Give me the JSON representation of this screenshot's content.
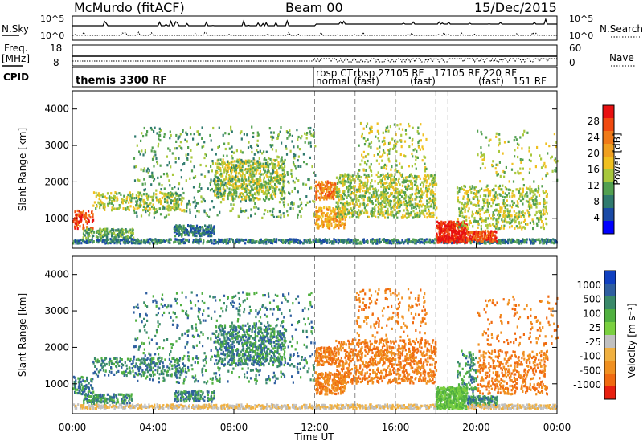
{
  "header": {
    "title": "McMurdo (fitACF)",
    "beam": "Beam 00",
    "date": "15/Dec/2015"
  },
  "panels": {
    "nsky_label": "N.Sky",
    "nsearch_label": "N.Search",
    "nsky_ticks": [
      "10^5",
      "10^0"
    ],
    "freq_label": "Freq.",
    "freq_unit": "[MHz]",
    "freq_ticks": [
      "18",
      "8"
    ],
    "nave_label": "Nave",
    "nave_ticks": [
      "60",
      "0"
    ],
    "cpid_label": "CPID",
    "cpid_entries": [
      "themis 3300 RF",
      "rbsp CT",
      "normal",
      "rbsp 27105 RF",
      "(fast)",
      "17105 RF 220 RF",
      "(fast)",
      "(fast)",
      "151 RF"
    ]
  },
  "chart_data": [
    {
      "type": "heatmap",
      "name": "power",
      "ylabel": "Slant Range [km]",
      "yticks": [
        1000,
        2000,
        3000,
        4000
      ],
      "ylim": [
        180,
        4500
      ],
      "xlim": [
        0,
        24
      ],
      "xticks": [
        "00:00",
        "04:00",
        "08:00",
        "12:00",
        "16:00",
        "20:00",
        "00:00"
      ],
      "xlabel": "Time UT",
      "colorbar": {
        "label": "Power [dB]",
        "ticks": [
          "4",
          "8",
          "12",
          "16",
          "20",
          "24",
          "28"
        ],
        "colors": [
          "#0000ff",
          "#1a4aa6",
          "#2f7a6e",
          "#52a050",
          "#a8c83c",
          "#f0c020",
          "#f0a020",
          "#f07a18",
          "#f04a10",
          "#e81010"
        ]
      },
      "mode_changes_ut": [
        12.0,
        14.0,
        16.0,
        18.0,
        18.6
      ]
    },
    {
      "type": "heatmap",
      "name": "velocity",
      "ylabel": "Slant Range [km]",
      "yticks": [
        1000,
        2000,
        3000,
        4000
      ],
      "ylim": [
        180,
        4500
      ],
      "xlim": [
        0,
        24
      ],
      "xticks": [
        "00:00",
        "04:00",
        "08:00",
        "12:00",
        "16:00",
        "20:00",
        "00:00"
      ],
      "xlabel": "Time UT",
      "colorbar": {
        "label": "Velocity [m s⁻¹]",
        "ticks": [
          "1000",
          "500",
          "100",
          "25",
          "-25",
          "-100",
          "-500",
          "-1000"
        ],
        "colors": [
          "#1040c0",
          "#2f5fa0",
          "#3a8a6a",
          "#50b040",
          "#7ad040",
          "#c0c0c0",
          "#f0b040",
          "#f09020",
          "#f06a10",
          "#e82010"
        ]
      },
      "mode_changes_ut": [
        12.0,
        14.0,
        16.0,
        18.0,
        18.6
      ]
    }
  ]
}
